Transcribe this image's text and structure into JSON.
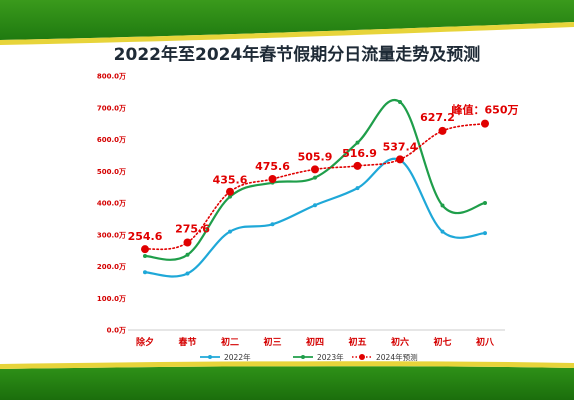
{
  "chart_data": {
    "type": "line",
    "title": "2022年至2024年春节假期分日流量走势及预测",
    "categories": [
      "除夕",
      "春节",
      "初二",
      "初三",
      "初四",
      "初五",
      "初六",
      "初七",
      "初八"
    ],
    "y_tick_labels": [
      "0.0万",
      "100.0万",
      "200.0万",
      "300.0万",
      "400.0万",
      "500.0万",
      "600.0万",
      "700.0万",
      "800.0万"
    ],
    "ylim": [
      0,
      800
    ],
    "grid": false,
    "legend_position": "bottom",
    "series": [
      {
        "name": "2022年",
        "color": "#1fa8d8",
        "style": "solid",
        "values": [
          182,
          178,
          310,
          333,
          393,
          447,
          535,
          310,
          305
        ]
      },
      {
        "name": "2023年",
        "color": "#1f9e4a",
        "style": "solid",
        "values": [
          233,
          237,
          420,
          464,
          480,
          590,
          718,
          392,
          400
        ]
      },
      {
        "name": "2024年预测",
        "color": "#e00000",
        "style": "dotted",
        "values": [
          254.6,
          275.6,
          435.6,
          475.6,
          505.9,
          516.9,
          537.4,
          627.2,
          650
        ],
        "labels": [
          "254.6",
          "275.6",
          "435.6",
          "475.6",
          "505.9",
          "516.9",
          "537.4",
          "627.2",
          "峰值：650万"
        ]
      }
    ]
  }
}
